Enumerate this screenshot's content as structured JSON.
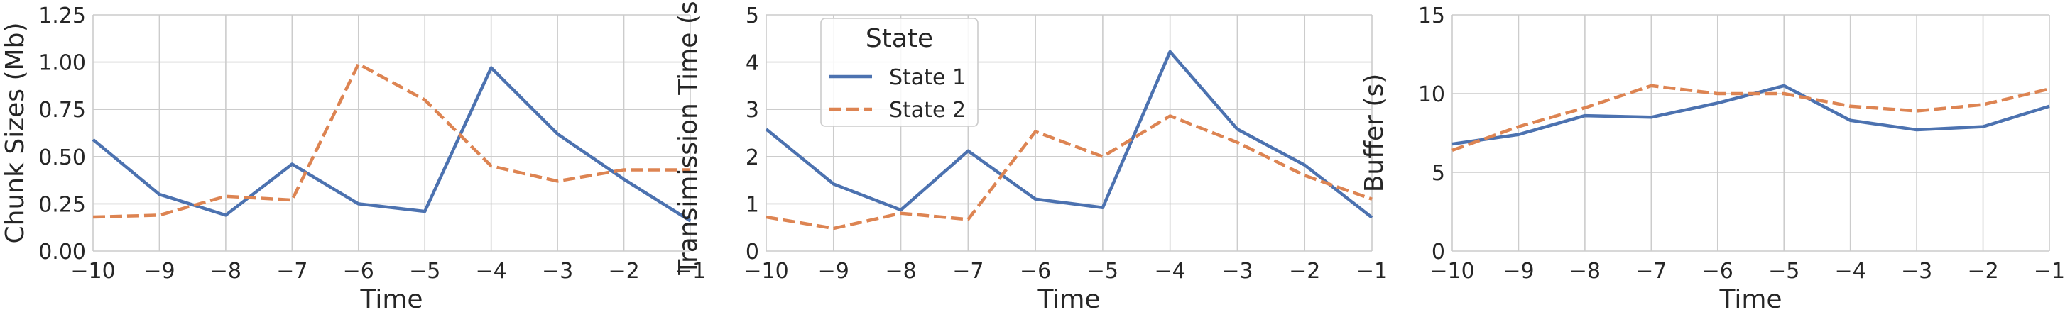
{
  "chart_data": [
    {
      "type": "line",
      "title": "",
      "xlabel": "Time",
      "ylabel": "Chunk Sizes (Mb)",
      "x": [
        -10,
        -9,
        -8,
        -7,
        -6,
        -5,
        -4,
        -3,
        -2,
        -1
      ],
      "xlim": [
        -10,
        -1
      ],
      "ylim": [
        0,
        1.25
      ],
      "xticks": [
        "−10",
        "−9",
        "−8",
        "−7",
        "−6",
        "−5",
        "−4",
        "−3",
        "−2",
        "−1"
      ],
      "yticks": [
        "0.00",
        "0.25",
        "0.50",
        "0.75",
        "1.00",
        "1.25"
      ],
      "ytick_values": [
        0,
        0.25,
        0.5,
        0.75,
        1.0,
        1.25
      ],
      "grid": true,
      "series": [
        {
          "name": "State 1",
          "color": "#4c72b0",
          "dash": "solid",
          "values": [
            0.59,
            0.3,
            0.19,
            0.46,
            0.25,
            0.21,
            0.97,
            0.62,
            0.38,
            0.16
          ]
        },
        {
          "name": "State 2",
          "color": "#dd8452",
          "dash": "dashed",
          "values": [
            0.18,
            0.19,
            0.29,
            0.27,
            0.99,
            0.8,
            0.45,
            0.37,
            0.43,
            0.43
          ]
        }
      ]
    },
    {
      "type": "line",
      "title": "",
      "xlabel": "Time",
      "ylabel": "Transimission Time (s)",
      "x": [
        -10,
        -9,
        -8,
        -7,
        -6,
        -5,
        -4,
        -3,
        -2,
        -1
      ],
      "xlim": [
        -10,
        -1
      ],
      "ylim": [
        0,
        5
      ],
      "xticks": [
        "−10",
        "−9",
        "−8",
        "−7",
        "−6",
        "−5",
        "−4",
        "−3",
        "−2",
        "−1"
      ],
      "yticks": [
        "0",
        "1",
        "2",
        "3",
        "4",
        "5"
      ],
      "ytick_values": [
        0,
        1,
        2,
        3,
        4,
        5
      ],
      "grid": true,
      "legend": {
        "title": "State",
        "placement": "top-left"
      },
      "series": [
        {
          "name": "State 1",
          "color": "#4c72b0",
          "dash": "solid",
          "values": [
            2.58,
            1.42,
            0.87,
            2.12,
            1.1,
            0.92,
            4.22,
            2.58,
            1.82,
            0.71
          ]
        },
        {
          "name": "State 2",
          "color": "#dd8452",
          "dash": "dashed",
          "values": [
            0.72,
            0.48,
            0.8,
            0.67,
            2.53,
            2.0,
            2.86,
            2.3,
            1.6,
            1.1
          ]
        }
      ]
    },
    {
      "type": "line",
      "title": "",
      "xlabel": "Time",
      "ylabel": "Buffer (s)",
      "x": [
        -10,
        -9,
        -8,
        -7,
        -6,
        -5,
        -4,
        -3,
        -2,
        -1
      ],
      "xlim": [
        -10,
        -1
      ],
      "ylim": [
        0,
        15
      ],
      "xticks": [
        "−10",
        "−9",
        "−8",
        "−7",
        "−6",
        "−5",
        "−4",
        "−3",
        "−2",
        "−1"
      ],
      "yticks": [
        "0",
        "5",
        "10",
        "15"
      ],
      "ytick_values": [
        0,
        5,
        10,
        15
      ],
      "grid": true,
      "series": [
        {
          "name": "State 1",
          "color": "#4c72b0",
          "dash": "solid",
          "values": [
            6.8,
            7.4,
            8.6,
            8.5,
            9.4,
            10.5,
            8.3,
            7.7,
            7.9,
            9.2
          ]
        },
        {
          "name": "State 2",
          "color": "#dd8452",
          "dash": "dashed",
          "values": [
            6.4,
            7.9,
            9.1,
            10.5,
            10.0,
            10.0,
            9.2,
            8.9,
            9.3,
            10.3
          ]
        }
      ]
    }
  ]
}
